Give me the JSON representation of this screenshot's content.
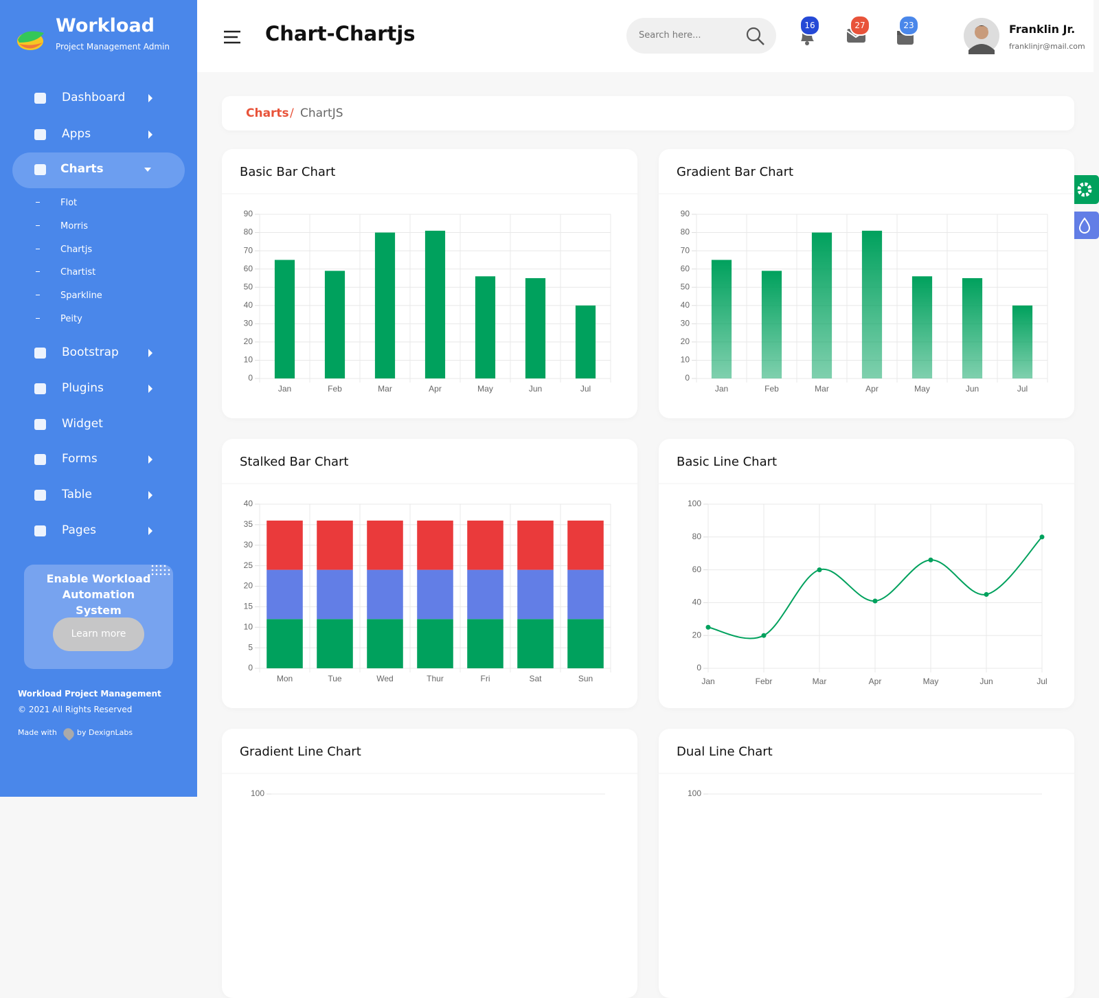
{
  "sidebar": {
    "brand": "Workload",
    "tagline": "Project Management Admin",
    "menu": [
      "Dashboard",
      "Apps",
      "Charts",
      "Bootstrap",
      "Plugins",
      "Widget",
      "Forms",
      "Table",
      "Pages"
    ],
    "submenu": [
      "Flot",
      "Morris",
      "Chartjs",
      "Chartist",
      "Sparkline",
      "Peity"
    ],
    "promo": {
      "text": "Enable Workload Automation System",
      "button": "Learn more"
    },
    "footer": {
      "title": "Workload Project Management",
      "copyright": "© 2021 All Rights Reserved",
      "made_with": "Made with",
      "by": "by DexignLabs"
    }
  },
  "header": {
    "title": "Chart-Chartjs",
    "search_placeholder": "Search here...",
    "badges": [
      16,
      27,
      23
    ],
    "user": {
      "name": "Franklin Jr.",
      "email": "franklinjr@mail.com"
    }
  },
  "breadcrumb": {
    "parent": "Charts",
    "separator": "/",
    "current": "ChartJS"
  },
  "chart_data": [
    {
      "type": "bar",
      "title": "Basic Bar Chart",
      "categories": [
        "Jan",
        "Feb",
        "Mar",
        "Apr",
        "May",
        "Jun",
        "Jul"
      ],
      "values": [
        65,
        59,
        80,
        81,
        56,
        55,
        40
      ],
      "color": "#00a15d",
      "ylim": [
        0,
        90
      ],
      "yticks": [
        0,
        10,
        20,
        30,
        40,
        50,
        60,
        70,
        80,
        90
      ],
      "grid": true
    },
    {
      "type": "bar",
      "title": "Gradient Bar Chart",
      "categories": [
        "Jan",
        "Feb",
        "Mar",
        "Apr",
        "May",
        "Jun",
        "Jul"
      ],
      "values": [
        65,
        59,
        80,
        81,
        56,
        55,
        40
      ],
      "color": "#00a15d",
      "gradient": true,
      "ylim": [
        0,
        90
      ],
      "yticks": [
        0,
        10,
        20,
        30,
        40,
        50,
        60,
        70,
        80,
        90
      ],
      "grid": true
    },
    {
      "type": "bar",
      "stacked": true,
      "title": "Stalked Bar Chart",
      "categories": [
        "Mon",
        "Tue",
        "Wed",
        "Thur",
        "Fri",
        "Sat",
        "Sun"
      ],
      "series": [
        {
          "color": "#00a15d",
          "values": [
            12,
            12,
            12,
            12,
            12,
            12,
            12
          ]
        },
        {
          "color": "#627ee6",
          "values": [
            12,
            12,
            12,
            12,
            12,
            12,
            12
          ]
        },
        {
          "color": "#ea3a3b",
          "values": [
            12,
            12,
            12,
            12,
            12,
            12,
            12
          ]
        }
      ],
      "ylim": [
        0,
        40
      ],
      "yticks": [
        0,
        5,
        10,
        15,
        20,
        25,
        30,
        35,
        40
      ],
      "grid": true
    },
    {
      "type": "line",
      "title": "Basic Line Chart",
      "categories": [
        "Jan",
        "Febr",
        "Mar",
        "Apr",
        "May",
        "Jun",
        "Jul"
      ],
      "values": [
        25,
        20,
        60,
        41,
        66,
        45,
        80
      ],
      "color": "#00a15d",
      "ylim": [
        0,
        100
      ],
      "yticks": [
        0,
        20,
        40,
        60,
        80,
        100
      ],
      "grid": true
    },
    {
      "type": "line",
      "title": "Gradient Line Chart",
      "ylim": [
        0,
        100
      ],
      "yticks": [
        100
      ],
      "grid": true
    },
    {
      "type": "line",
      "title": "Dual Line Chart",
      "ylim": [
        0,
        100
      ],
      "yticks": [
        100
      ],
      "grid": true
    }
  ]
}
